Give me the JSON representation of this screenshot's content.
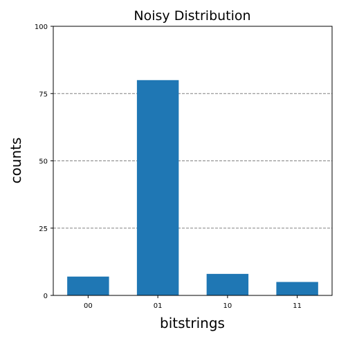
{
  "chart_data": {
    "type": "bar",
    "title": "Noisy Distribution",
    "xlabel": "bitstrings",
    "ylabel": "counts",
    "categories": [
      "00",
      "01",
      "10",
      "11"
    ],
    "values": [
      7,
      80,
      8,
      5
    ],
    "ylim": [
      0,
      100
    ],
    "yticks": [
      "0",
      "25",
      "50",
      "75",
      "100"
    ],
    "grid": "horizontal dashed",
    "bar_color": "#1f77b4",
    "grid_color": "#808080"
  }
}
